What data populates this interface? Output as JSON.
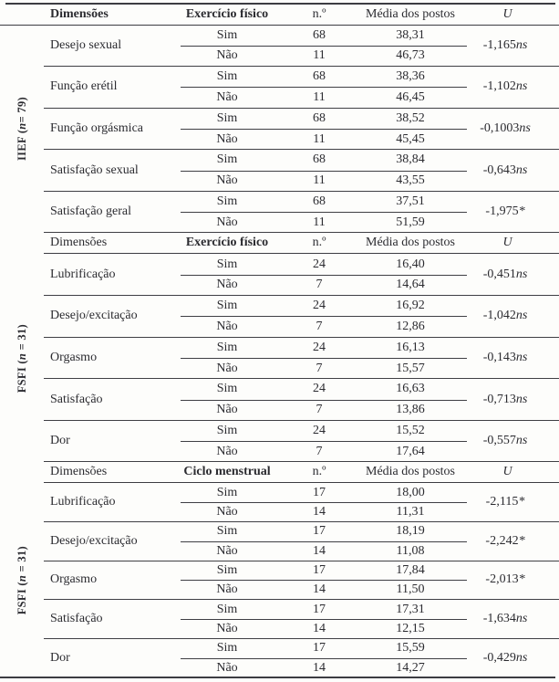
{
  "table": {
    "sections": [
      {
        "side_label": {
          "bold_prefix": "IIEF (",
          "italic_n": "n",
          "suffix": "= 79)"
        },
        "header": {
          "dimensions": "Dimensões",
          "factor": "Exercício físico",
          "n": "n.º",
          "mean": "Média dos postos",
          "u": "U"
        },
        "groups": [
          {
            "dimension": "Desejo sexual",
            "rows": [
              {
                "answer": "Sim",
                "n": "68",
                "mean": "38,31"
              },
              {
                "answer": "Não",
                "n": "11",
                "mean": "46,73"
              }
            ],
            "u": "-1,165",
            "u_suffix": "ns"
          },
          {
            "dimension": "Função erétil",
            "rows": [
              {
                "answer": "Sim",
                "n": "68",
                "mean": "38,36"
              },
              {
                "answer": "Não",
                "n": "11",
                "mean": "46,45"
              }
            ],
            "u": "-1,102",
            "u_suffix": "ns"
          },
          {
            "dimension": "Função orgásmica",
            "rows": [
              {
                "answer": "Sim",
                "n": "68",
                "mean": "38,52"
              },
              {
                "answer": "Não",
                "n": "11",
                "mean": "45,45"
              }
            ],
            "u": "-0,1003",
            "u_suffix": "ns"
          },
          {
            "dimension": "Satisfação sexual",
            "rows": [
              {
                "answer": "Sim",
                "n": "68",
                "mean": "38,84"
              },
              {
                "answer": "Não",
                "n": "11",
                "mean": "43,55"
              }
            ],
            "u": "-0,643",
            "u_suffix": "ns"
          },
          {
            "dimension": "Satisfação geral",
            "rows": [
              {
                "answer": "Sim",
                "n": "68",
                "mean": "37,51"
              },
              {
                "answer": "Não",
                "n": "11",
                "mean": "51,59"
              }
            ],
            "u": "-1,975",
            "u_suffix": "*"
          }
        ]
      },
      {
        "side_label": {
          "bold_prefix": "FSFI (",
          "italic_n": "n",
          "suffix": " = 31)"
        },
        "header": {
          "dimensions": "Dimensões",
          "factor": "Exercício físico",
          "n": "n.º",
          "mean": "Média dos postos",
          "u": "U"
        },
        "groups": [
          {
            "dimension": "Lubrificação",
            "rows": [
              {
                "answer": "Sim",
                "n": "24",
                "mean": "16,40"
              },
              {
                "answer": "Não",
                "n": "7",
                "mean": "14,64"
              }
            ],
            "u": "-0,451",
            "u_suffix": "ns"
          },
          {
            "dimension": "Desejo/excitação",
            "rows": [
              {
                "answer": "Sim",
                "n": "24",
                "mean": "16,92"
              },
              {
                "answer": "Não",
                "n": "7",
                "mean": "12,86"
              }
            ],
            "u": "-1,042",
            "u_suffix": "ns"
          },
          {
            "dimension": "Orgasmo",
            "rows": [
              {
                "answer": "Sim",
                "n": "24",
                "mean": "16,13"
              },
              {
                "answer": "Não",
                "n": "7",
                "mean": "15,57"
              }
            ],
            "u": "-0,143",
            "u_suffix": "ns"
          },
          {
            "dimension": "Satisfação",
            "rows": [
              {
                "answer": "Sim",
                "n": "24",
                "mean": "16,63"
              },
              {
                "answer": "Não",
                "n": "7",
                "mean": "13,86"
              }
            ],
            "u": "-0,713",
            "u_suffix": "ns"
          },
          {
            "dimension": "Dor",
            "rows": [
              {
                "answer": "Sim",
                "n": "24",
                "mean": "15,52"
              },
              {
                "answer": "Não",
                "n": "7",
                "mean": "17,64"
              }
            ],
            "u": "-0,557",
            "u_suffix": "ns"
          }
        ]
      },
      {
        "side_label": {
          "bold_prefix": "FSFI (",
          "italic_n": "n",
          "suffix": " = 31)"
        },
        "header": {
          "dimensions": "Dimensões",
          "factor": "Ciclo menstrual",
          "n": "n.º",
          "mean": "Média dos postos",
          "u": "U"
        },
        "groups": [
          {
            "dimension": "Lubrificação",
            "rows": [
              {
                "answer": "Sim",
                "n": "17",
                "mean": "18,00"
              },
              {
                "answer": "Não",
                "n": "14",
                "mean": "11,31"
              }
            ],
            "u": "-2,115",
            "u_suffix": "*"
          },
          {
            "dimension": "Desejo/excitação",
            "rows": [
              {
                "answer": "Sim",
                "n": "17",
                "mean": "18,19"
              },
              {
                "answer": "Não",
                "n": "14",
                "mean": "11,08"
              }
            ],
            "u": "-2,242",
            "u_suffix": "*"
          },
          {
            "dimension": "Orgasmo",
            "rows": [
              {
                "answer": "Sim",
                "n": "17",
                "mean": "17,84"
              },
              {
                "answer": "Não",
                "n": "14",
                "mean": "11,50"
              }
            ],
            "u": "-2,013",
            "u_suffix": "*"
          },
          {
            "dimension": "Satisfação",
            "rows": [
              {
                "answer": "Sim",
                "n": "17",
                "mean": "17,31"
              },
              {
                "answer": "Não",
                "n": "14",
                "mean": "12,15"
              }
            ],
            "u": "-1,634",
            "u_suffix": "ns"
          },
          {
            "dimension": "Dor",
            "rows": [
              {
                "answer": "Sim",
                "n": "17",
                "mean": "15,59"
              },
              {
                "answer": "Não",
                "n": "14",
                "mean": "14,27"
              }
            ],
            "u": "-0,429",
            "u_suffix": "ns"
          }
        ]
      }
    ]
  }
}
